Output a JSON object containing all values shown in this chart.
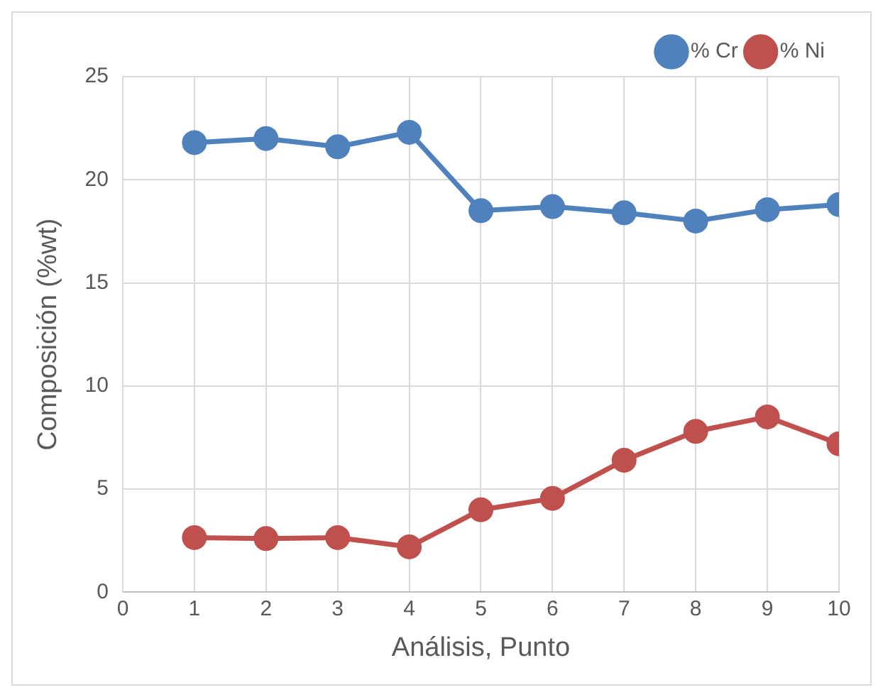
{
  "chart_data": {
    "type": "line",
    "xlabel": "Análisis, Punto",
    "ylabel": "Composición (%wt)",
    "x": [
      1,
      2,
      3,
      4,
      5,
      6,
      7,
      8,
      9,
      10
    ],
    "series": [
      {
        "name": "% Cr",
        "color": "#4f81bd",
        "values": [
          21.8,
          22.0,
          21.6,
          22.3,
          18.5,
          18.7,
          18.4,
          18.0,
          18.55,
          18.8
        ]
      },
      {
        "name": "% Ni",
        "color": "#c0504d",
        "values": [
          2.65,
          2.6,
          2.65,
          2.2,
          4.0,
          4.55,
          6.4,
          7.8,
          8.5,
          7.2
        ]
      }
    ],
    "xlim": [
      0,
      10
    ],
    "xticks": [
      0,
      1,
      2,
      3,
      4,
      5,
      6,
      7,
      8,
      9,
      10
    ],
    "ylim": [
      0,
      25
    ],
    "yticks": [
      0,
      5,
      10,
      15,
      20,
      25
    ],
    "grid": true,
    "legend": "top right",
    "marker": "circle",
    "line_style": "solid"
  }
}
